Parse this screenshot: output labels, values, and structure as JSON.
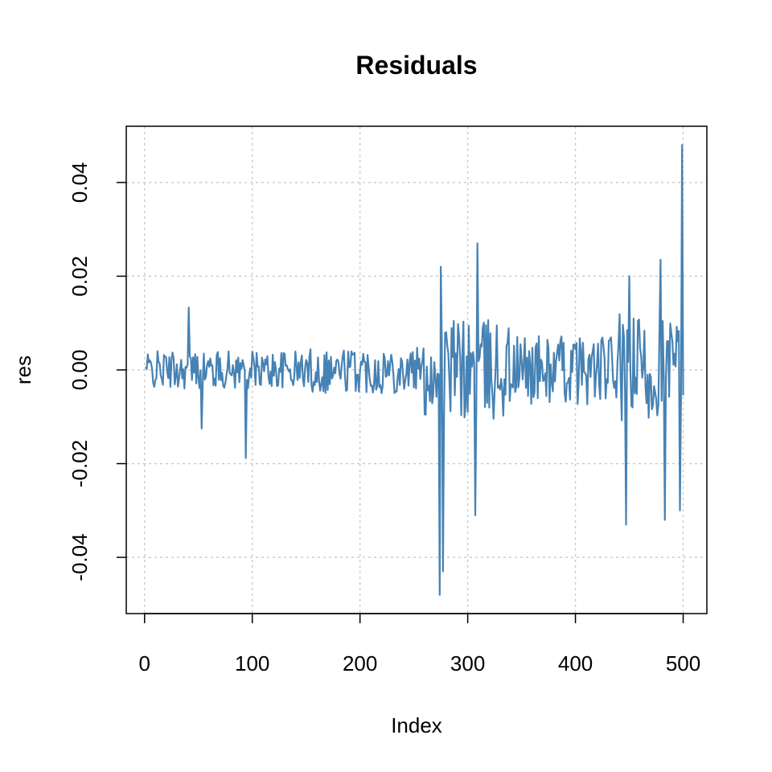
{
  "chart_data": {
    "type": "line",
    "title": "Residuals",
    "xlabel": "Index",
    "ylabel": "res",
    "xlim": [
      -17,
      522
    ],
    "ylim": [
      -0.052,
      0.052
    ],
    "x_ticks": [
      0,
      100,
      200,
      300,
      400,
      500
    ],
    "x_tick_labels": [
      "0",
      "100",
      "200",
      "300",
      "400",
      "500"
    ],
    "y_ticks": [
      -0.04,
      -0.02,
      0.0,
      0.02,
      0.04
    ],
    "y_tick_labels": [
      "-0.04",
      "-0.02",
      "0.00",
      "0.02",
      "0.04"
    ],
    "grid": true,
    "series": [
      {
        "color": "#4682B4",
        "x": [
          1,
          500
        ],
        "values": [
          -0.001,
          0.0
        ]
      }
    ]
  }
}
